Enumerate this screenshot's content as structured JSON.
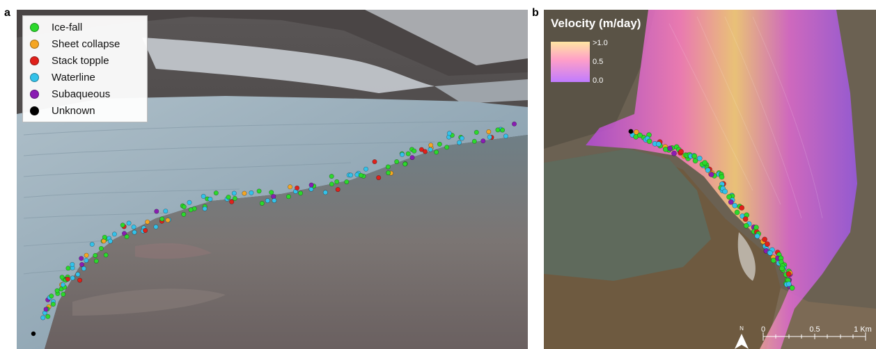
{
  "panel_a": {
    "letter": "a",
    "legend": [
      {
        "label": "Ice-fall",
        "color": "#2bd92b"
      },
      {
        "label": "Sheet collapse",
        "color": "#f5a623"
      },
      {
        "label": "Stack topple",
        "color": "#e0201a"
      },
      {
        "label": "Waterline",
        "color": "#33c2ea"
      },
      {
        "label": "Subaqueous",
        "color": "#8a1cb3"
      },
      {
        "label": "Unknown",
        "color": "#000000"
      }
    ]
  },
  "panel_b": {
    "letter": "b",
    "velocity_title": "Velocity (m/day)",
    "velocity_ticks": [
      ">1.0",
      "0.5",
      "0.0"
    ],
    "north_label": "N",
    "scale_labels": [
      "0",
      "0.5",
      "1 Km"
    ]
  }
}
